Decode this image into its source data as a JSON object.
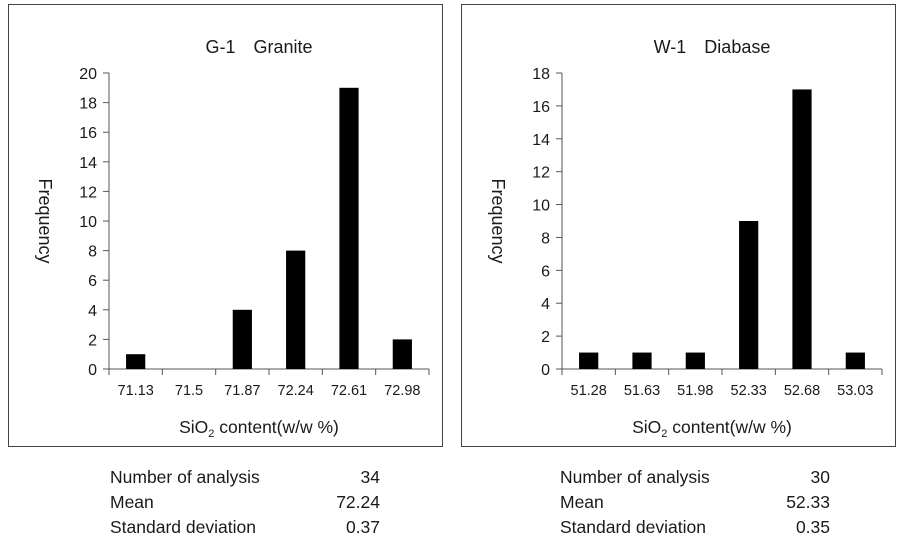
{
  "chart_data": [
    {
      "type": "bar",
      "title": "G-1　Granite",
      "ylabel": "Frequency",
      "xlabel_main": "SiO",
      "xlabel_sub": "2",
      "xlabel_rest": " content(w/w %)",
      "categories": [
        "71.13",
        "71.5",
        "71.87",
        "72.24",
        "72.61",
        "72.98"
      ],
      "values": [
        1,
        0,
        4,
        8,
        19,
        2
      ],
      "ylim": [
        0,
        20
      ],
      "yticks": [
        0,
        2,
        4,
        6,
        8,
        10,
        12,
        14,
        16,
        18,
        20
      ],
      "bar_color": "#000000",
      "grid": false
    },
    {
      "type": "bar",
      "title": "W-1　Diabase",
      "ylabel": "Frequency",
      "xlabel_main": "SiO",
      "xlabel_sub": "2",
      "xlabel_rest": " content(w/w %)",
      "categories": [
        "51.28",
        "51.63",
        "51.98",
        "52.33",
        "52.68",
        "53.03"
      ],
      "values": [
        1,
        1,
        1,
        9,
        17,
        1
      ],
      "ylim": [
        0,
        18
      ],
      "yticks": [
        0,
        2,
        4,
        6,
        8,
        10,
        12,
        14,
        16,
        18
      ],
      "bar_color": "#000000",
      "grid": false
    }
  ],
  "stats": [
    {
      "rows": [
        {
          "label": "Number of analysis",
          "value": "34"
        },
        {
          "label": "Mean",
          "value": "72.24"
        },
        {
          "label": "Standard deviation",
          "value": "0.37"
        }
      ]
    },
    {
      "rows": [
        {
          "label": "Number of analysis",
          "value": "30"
        },
        {
          "label": "Mean",
          "value": "52.33"
        },
        {
          "label": "Standard deviation",
          "value": "0.35"
        }
      ]
    }
  ]
}
